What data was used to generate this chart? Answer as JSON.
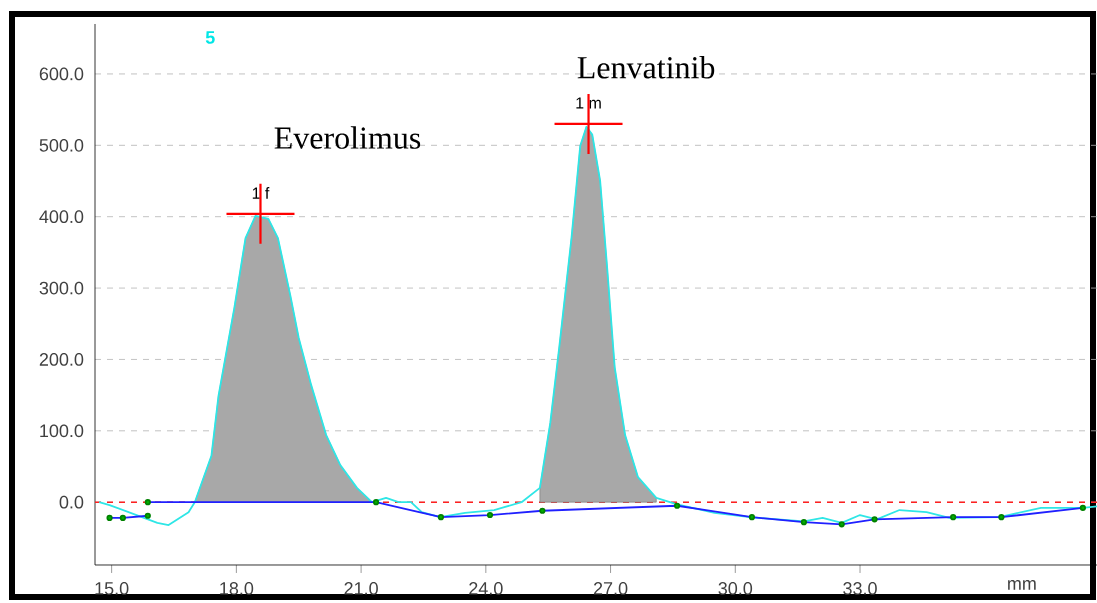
{
  "chart_data": {
    "type": "line",
    "xlabel": "mm",
    "annotations": [
      "5",
      "Everolimus",
      {
        "text": "1 f",
        "x": 18.58,
        "y": 404
      },
      "Lenvatinib",
      {
        "text": "1 m",
        "x": 26.47,
        "y": 530
      }
    ],
    "xlim": [
      14.6,
      38.7
    ],
    "xticks": [
      {
        "value": 15,
        "label": "15.0"
      },
      {
        "value": 18,
        "label": "18.0"
      },
      {
        "value": 21,
        "label": "21.0"
      },
      {
        "value": 24,
        "label": "24.0"
      },
      {
        "value": 27,
        "label": "27.0"
      },
      {
        "value": 30,
        "label": "30.0"
      },
      {
        "value": 33,
        "label": "33.0"
      }
    ],
    "ylim": [
      -88,
      670
    ],
    "yticks": [
      {
        "value": 0,
        "label": "0.0"
      },
      {
        "value": 100,
        "label": "100.0"
      },
      {
        "value": 200,
        "label": "200.0"
      },
      {
        "value": 300,
        "label": "300.0"
      },
      {
        "value": 400,
        "label": "400.0"
      },
      {
        "value": 500,
        "label": "500.0"
      },
      {
        "value": 600,
        "label": "600.0"
      }
    ],
    "grid": "y",
    "ref_lines": [
      {
        "axis": "y",
        "value": 0,
        "color": "#ff2020",
        "line_style": "dashed"
      }
    ],
    "series": [
      {
        "type": "area",
        "color": "#a8a8a8",
        "x": [
          17.0,
          17.4,
          17.57,
          17.95,
          18.22,
          18.46,
          18.77,
          19.0,
          19.3,
          19.5,
          19.8,
          20.16,
          20.5,
          20.9,
          21.26,
          24.86,
          25.3,
          25.55,
          25.77,
          26.06,
          26.27,
          26.42,
          26.56,
          26.75,
          26.92,
          27.1,
          27.35,
          27.66,
          28.1
        ],
        "values": [
          0,
          65,
          149,
          272,
          370,
          401,
          397,
          370,
          289,
          230,
          164,
          94,
          52,
          20,
          0,
          null,
          20,
          111,
          219,
          370,
          499,
          526,
          515,
          450,
          327,
          189,
          94,
          35,
          6
        ]
      },
      {
        "color": "#2ee6e6",
        "marker": "none",
        "x": [
          14.7,
          14.95,
          16.1,
          16.37,
          16.85,
          17.0,
          17.4,
          17.57,
          17.95,
          18.22,
          18.46,
          18.77,
          19.0,
          19.3,
          19.5,
          19.8,
          20.16,
          20.5,
          20.9,
          21.26,
          21.6,
          21.9,
          22.2,
          22.46,
          22.9,
          23.5,
          24.2,
          24.86,
          25.3,
          25.55,
          25.77,
          26.06,
          26.27,
          26.42,
          26.56,
          26.75,
          26.92,
          27.1,
          27.35,
          27.66,
          28.1,
          28.6,
          29.5,
          30.35,
          31.65,
          32.1,
          32.56,
          33.0,
          33.4,
          33.95,
          34.6,
          35.15,
          36.35,
          37.35,
          38.36,
          38.7
        ],
        "values": [
          0,
          -4,
          -29,
          -32,
          -14,
          0,
          65,
          149,
          272,
          370,
          401,
          397,
          370,
          289,
          230,
          164,
          94,
          52,
          20,
          0,
          6,
          0,
          0,
          -14,
          -21,
          -15,
          -11,
          0,
          20,
          111,
          219,
          370,
          499,
          526,
          515,
          450,
          327,
          189,
          94,
          35,
          6,
          -3,
          -15,
          -21,
          -27,
          -22,
          -29,
          -18,
          -24,
          -11,
          -14,
          -22,
          -21,
          -8,
          -8,
          -6
        ]
      },
      {
        "color": "#2020ff",
        "marker": "circle",
        "x": [
          14.95,
          15.27,
          15.87
        ],
        "values": [
          -22,
          -22,
          -19
        ]
      },
      {
        "color": "#2020ff",
        "marker": "circle",
        "x": [
          15.87,
          21.36,
          22.92,
          24.1,
          25.36,
          28.6,
          30.4,
          31.65,
          32.56,
          33.35,
          35.24,
          36.4,
          38.36
        ],
        "values": [
          0,
          0,
          -21,
          -18,
          -12,
          -5,
          -21,
          -28,
          -31,
          -24,
          -21,
          -21,
          -8
        ]
      }
    ]
  }
}
